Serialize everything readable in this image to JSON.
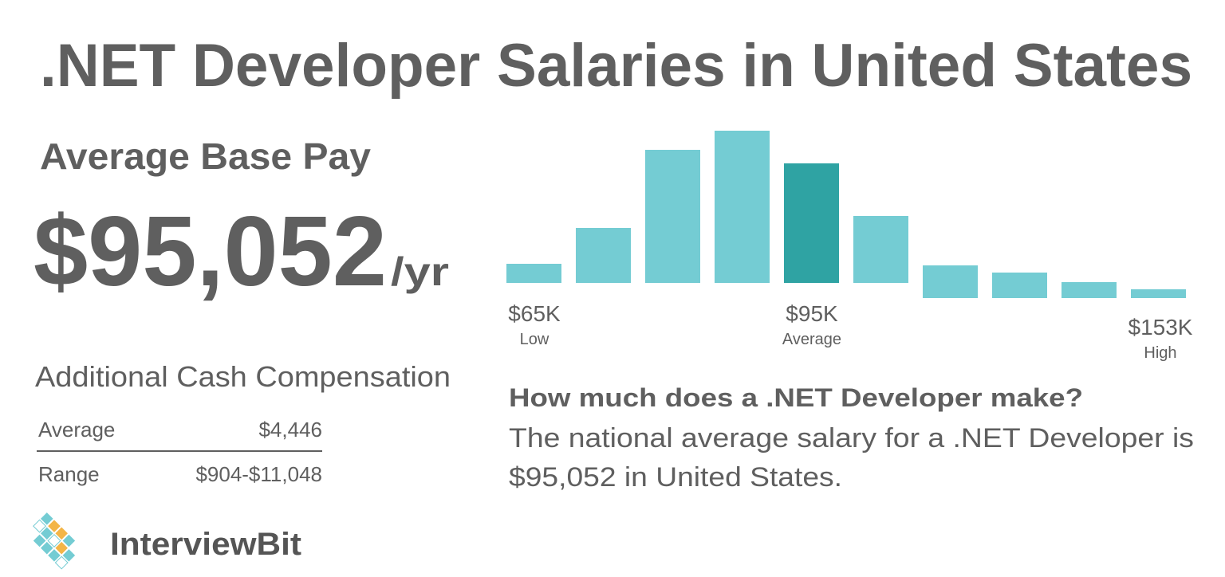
{
  "header": {
    "title": ".NET Developer Salaries in United States"
  },
  "pay": {
    "label": "Average Base Pay",
    "amount": "$95,052",
    "unit": "/yr"
  },
  "additional": {
    "title": "Additional Cash Compensation",
    "rows": [
      [
        "Average",
        "$4,446"
      ],
      [
        "Range",
        "$904-$11,048"
      ]
    ]
  },
  "chart_data": {
    "type": "bar",
    "values": [
      24,
      69,
      167,
      191,
      150,
      84,
      41,
      32,
      20,
      11
    ],
    "colors": [
      "#74ccd3",
      "#74ccd3",
      "#74ccd3",
      "#74ccd3",
      "#2fa3a3",
      "#74ccd3",
      "#74ccd3",
      "#74ccd3",
      "#74ccd3",
      "#74ccd3"
    ],
    "annotations": [
      {
        "label": "$65K",
        "sub": "Low"
      },
      {
        "label": "$95K",
        "sub": "Average"
      },
      {
        "label": "$153K",
        "sub": "High"
      }
    ]
  },
  "question": {
    "title": "How much does a .NET Developer make?",
    "lines": [
      "The national average salary for a .NET Developer is",
      "$95,052 in United States."
    ]
  },
  "logo": {
    "text": "InterviewBit"
  }
}
